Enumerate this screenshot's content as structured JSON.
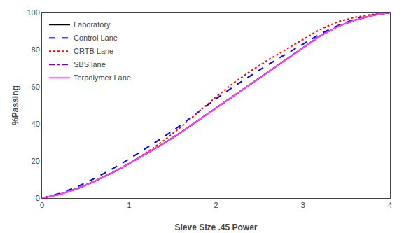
{
  "chart_data": {
    "type": "line",
    "xlabel": "Sieve Size .45 Power",
    "ylabel": "%Passing",
    "x": [
      0.0,
      0.2,
      0.4,
      0.6,
      0.8,
      1.0,
      1.2,
      1.4,
      1.6,
      1.8,
      2.0,
      2.2,
      2.4,
      2.6,
      2.8,
      3.0,
      3.2,
      3.4,
      3.6,
      3.8,
      4.0
    ],
    "series": [
      {
        "name": "Laboratory",
        "color": "#000000",
        "line_style": "solid",
        "values": [
          0.0,
          2.0,
          5.0,
          9.0,
          13.5,
          18.5,
          24.0,
          29.5,
          35.5,
          42.0,
          48.5,
          55.0,
          61.5,
          68.0,
          74.5,
          81.0,
          87.5,
          92.5,
          96.0,
          98.5,
          100.0
        ]
      },
      {
        "name": "Control Lane",
        "color": "#0000FF",
        "line_style": "dashed",
        "values": [
          0.0,
          2.5,
          6.0,
          10.5,
          15.5,
          21.0,
          27.0,
          33.0,
          39.5,
          46.5,
          53.5,
          60.0,
          66.0,
          72.0,
          77.5,
          83.0,
          88.5,
          93.0,
          96.5,
          98.8,
          100.0
        ]
      },
      {
        "name": "CRTB Lane",
        "color": "#FF0000",
        "line_style": "dotted",
        "values": [
          0.0,
          2.0,
          5.0,
          9.0,
          13.5,
          18.5,
          24.5,
          31.0,
          38.5,
          46.5,
          54.5,
          62.0,
          68.5,
          74.5,
          80.0,
          85.5,
          91.0,
          95.0,
          97.5,
          99.0,
          100.0
        ]
      },
      {
        "name": "SBS lane",
        "color": "#8800AA",
        "line_style": "dashdot",
        "values": [
          0.0,
          2.0,
          5.0,
          9.0,
          13.5,
          18.5,
          24.0,
          29.5,
          35.5,
          42.0,
          48.5,
          55.0,
          61.5,
          68.0,
          74.5,
          81.0,
          87.5,
          92.5,
          96.0,
          98.5,
          100.0
        ]
      },
      {
        "name": "Terpolymer Lane",
        "color": "#FF44FF",
        "line_style": "solid",
        "values": [
          0.0,
          2.0,
          5.0,
          9.0,
          13.5,
          18.5,
          24.0,
          29.5,
          35.5,
          42.0,
          48.5,
          55.0,
          61.5,
          68.0,
          74.5,
          81.0,
          87.5,
          92.5,
          96.0,
          98.5,
          100.0
        ]
      }
    ],
    "xlim": [
      0,
      4
    ],
    "ylim": [
      0,
      100
    ],
    "xticks": [
      0,
      1,
      2,
      3,
      4
    ],
    "yticks": [
      0,
      20,
      40,
      60,
      80,
      100
    ],
    "grid": false,
    "legend": "upper left"
  }
}
